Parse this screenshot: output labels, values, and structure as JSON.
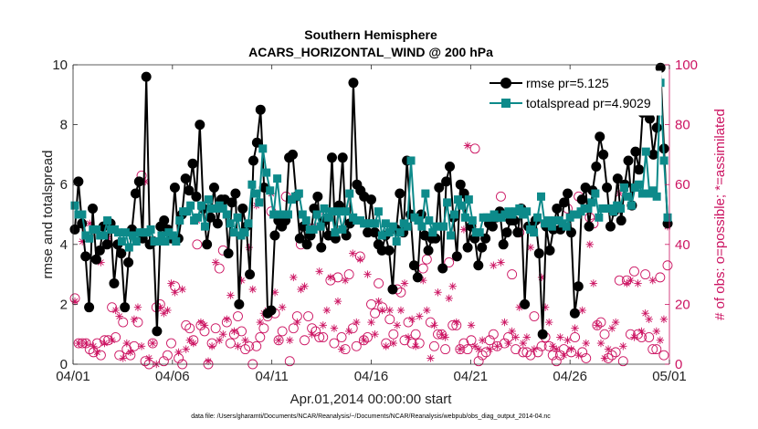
{
  "chart_data": {
    "type": "line",
    "title": "Southern Hemisphere",
    "subtitle": "ACARS_HORIZONTAL_WIND @ 200 hPa",
    "xlabel": "Apr.01,2014 00:00:00 start",
    "ylabel": "rmse and totalspread",
    "ylabel_right": "# of obs: o=possible; *=assimilated",
    "footnote": "data file: /Users/gharamti/Documents/NCAR/Reanalysis/~/Documents/NCAR/Reanalysis/webpub/obs_diag_output_2014-04.nc",
    "xlim": [
      0,
      30
    ],
    "ylim": [
      0,
      10
    ],
    "ylim_right": [
      0,
      100
    ],
    "x_ticks": [
      0,
      5,
      10,
      15,
      20,
      25,
      30
    ],
    "x_tick_labels": [
      "04/01",
      "04/06",
      "04/11",
      "04/16",
      "04/21",
      "04/26",
      "05/01"
    ],
    "y_ticks": [
      0,
      2,
      4,
      6,
      8,
      10
    ],
    "y_tick_labels": [
      "0",
      "2",
      "4",
      "6",
      "8",
      "10"
    ],
    "y_ticks_right": [
      0,
      20,
      40,
      60,
      80,
      100
    ],
    "y_tick_labels_right": [
      "0",
      "20",
      "40",
      "60",
      "80",
      "100"
    ],
    "legend_position": "top-right",
    "colors": {
      "rmse": "#000000",
      "spread": "#0d8a8a",
      "obs": "#cc1462"
    },
    "series": [
      {
        "name": "rmse pr=5.125",
        "marker": "circle",
        "values": [
          4.5,
          6.1,
          4.7,
          3.6,
          1.9,
          5.2,
          3.5,
          3.8,
          4.6,
          4.0,
          4.7,
          2.7,
          4.0,
          3.7,
          1.9,
          3.4,
          4.5,
          5.7,
          6.1,
          4.2,
          9.6,
          4.0,
          4.1,
          1.1,
          4.6,
          4.8,
          4.5,
          4.2,
          5.9,
          4.2,
          5.0,
          6.2,
          5.8,
          6.7,
          5.6,
          8.0,
          5.2,
          4.0,
          4.9,
          5.9,
          4.7,
          5.5,
          5.5,
          3.7,
          5.4,
          5.7,
          2.0,
          5.2,
          4.6,
          3.0,
          6.8,
          7.4,
          8.5,
          5.9,
          1.7,
          1.8,
          4.3,
          4.8,
          4.6,
          4.8,
          6.9,
          7.0,
          5.6,
          4.2,
          4.6,
          4.0,
          4.3,
          5.2,
          5.6,
          3.9,
          4.8,
          4.3,
          6.9,
          4.2,
          5.3,
          6.9,
          4.3,
          4.7,
          9.4,
          6.0,
          5.8,
          5.6,
          4.4,
          5.5,
          4.4,
          4.0,
          3.8,
          4.3,
          3.8,
          2.5,
          4.5,
          5.7,
          4.4,
          6.8,
          5.0,
          3.3,
          2.9,
          5.0,
          4.3,
          3.8,
          4.2,
          4.2,
          5.9,
          3.2,
          6.1,
          6.6,
          4.9,
          3.6,
          6.0,
          5.7,
          3.9,
          4.6,
          4.2,
          3.3,
          3.9,
          4.2,
          4.7,
          4.6,
          4.9,
          5.1,
          4.0,
          4.4,
          4.8,
          4.8,
          4.4,
          5.2,
          2.0,
          4.6,
          4.6,
          4.8,
          3.7,
          1.0,
          4.6,
          3.8,
          4.5,
          5.2,
          4.5,
          5.4,
          5.7,
          4.4,
          1.7,
          2.6,
          5.5,
          5.9,
          4.6,
          5.8,
          6.6,
          7.6,
          7.0,
          5.9,
          4.6,
          5.1,
          6.2,
          4.8,
          6.0,
          6.8,
          5.3,
          7.1,
          6.5,
          8.4,
          8.7,
          8.2,
          7.0,
          7.9,
          9.9,
          7.2,
          4.7
        ]
      },
      {
        "name": "totalspread pr=4.9029",
        "marker": "square",
        "values": [
          5.3,
          5.0,
          5.0,
          4.3,
          4.2,
          4.5,
          4.5,
          4.3,
          4.3,
          4.8,
          4.5,
          4.5,
          4.4,
          4.1,
          4.4,
          3.9,
          4.3,
          4.1,
          4.4,
          4.4,
          4.4,
          4.5,
          4.1,
          4.1,
          4.3,
          4.1,
          4.4,
          4.3,
          4.1,
          4.8,
          5.1,
          5.1,
          5.3,
          4.8,
          4.9,
          5.3,
          4.6,
          5.5,
          5.2,
          5.2,
          5.3,
          5.2,
          5.0,
          4.7,
          4.4,
          4.9,
          4.3,
          4.4,
          4.7,
          6.0,
          5.7,
          5.4,
          7.2,
          6.4,
          5.8,
          5.0,
          6.2,
          5.0,
          5.0,
          5.0,
          5.5,
          5.6,
          5.7,
          5.0,
          4.8,
          4.5,
          4.5,
          5.0,
          4.6,
          5.2,
          4.9,
          5.1,
          4.4,
          5.1,
          4.5,
          5.1,
          5.7,
          4.9,
          4.8,
          4.8,
          4.7,
          4.7,
          4.7,
          4.7,
          5.1,
          4.3,
          4.7,
          4.4,
          4.6,
          4.1,
          4.4,
          4.7,
          4.6,
          6.8,
          4.9,
          4.8,
          4.6,
          5.7,
          4.8,
          4.4,
          4.6,
          4.6,
          4.6,
          5.4,
          4.3,
          5.0,
          5.5,
          5.3,
          4.9,
          5.5,
          4.8,
          4.4,
          4.4,
          4.9,
          4.9,
          4.9,
          5.0,
          4.9,
          4.9,
          5.0,
          5.1,
          5.0,
          5.1,
          5.2,
          5.0,
          5.1,
          4.5,
          4.4,
          4.9,
          5.6,
          4.7,
          4.8,
          4.6,
          4.8,
          4.8,
          4.7,
          4.6,
          4.9,
          5.0,
          5.0,
          5.1,
          5.2,
          5.2,
          5.4,
          5.7,
          4.9,
          5.2,
          5.2,
          5.2,
          5.1,
          5.3,
          5.2,
          5.9,
          5.6,
          5.3,
          5.9,
          6.0,
          5.7,
          7.1,
          5.7,
          5.8,
          5.6,
          9.4,
          6.8,
          4.9
        ]
      },
      {
        "name": "obs possible",
        "marker": "circle-open",
        "axis": "right",
        "values": [
          22,
          7,
          7,
          7,
          5,
          4,
          7,
          3,
          8,
          8,
          19,
          9,
          3,
          14,
          5,
          3,
          6,
          14,
          63,
          1,
          0,
          7,
          19,
          20,
          1,
          3,
          7,
          26,
          2,
          0,
          13,
          12,
          8,
          40,
          13,
          11,
          0,
          7,
          12,
          32,
          38,
          14,
          7,
          10,
          16,
          11,
          5,
          6,
          0,
          6,
          9,
          12,
          16,
          51,
          17,
          8,
          11,
          56,
          1,
          12,
          16,
          40,
          8,
          16,
          12,
          11,
          9,
          9,
          50,
          28,
          7,
          29,
          9,
          5,
          30,
          12,
          6,
          36,
          8,
          9,
          20,
          17,
          27,
          19,
          7,
          15,
          10,
          25,
          24,
          8,
          14,
          7,
          10,
          7,
          32,
          35,
          14,
          6,
          10,
          10,
          5,
          34,
          13,
          13,
          5,
          7,
          5,
          8,
          72,
          1,
          3,
          4,
          8,
          10,
          6,
          56,
          7,
          9,
          30,
          5,
          44,
          4,
          4,
          3,
          16,
          4,
          6,
          9,
          6,
          3,
          1,
          3,
          5,
          52,
          4,
          9,
          56,
          4,
          2,
          49,
          47,
          13,
          14,
          10,
          2,
          3,
          4,
          28,
          1,
          28,
          10,
          31,
          10,
          9,
          30,
          9,
          5,
          5,
          29,
          3,
          33
        ]
      },
      {
        "name": "obs assimilated",
        "marker": "asterisk",
        "axis": "right",
        "values": [
          21,
          7,
          41,
          7,
          47,
          6,
          4,
          34,
          7,
          42,
          8,
          18,
          16,
          2,
          7,
          4,
          15,
          19,
          6,
          61,
          2,
          7,
          0,
          19,
          17,
          18,
          27,
          24,
          4,
          25,
          5,
          8,
          7,
          48,
          14,
          13,
          1,
          6,
          34,
          8,
          10,
          15,
          23,
          11,
          6,
          28,
          8,
          39,
          25,
          53,
          14,
          17,
          18,
          57,
          24,
          8,
          19,
          48,
          8,
          29,
          14,
          25,
          26,
          46,
          10,
          46,
          31,
          13,
          18,
          29,
          12,
          21,
          5,
          28,
          11,
          37,
          14,
          35,
          8,
          30,
          14,
          10,
          21,
          18,
          6,
          18,
          7,
          13,
          18,
          27,
          9,
          15,
          6,
          16,
          28,
          18,
          2,
          13,
          24,
          10,
          9,
          22,
          26,
          14,
          5,
          45,
          73,
          13,
          6,
          5,
          8,
          42,
          5,
          33,
          6,
          34,
          14,
          7,
          11,
          9,
          19,
          7,
          9,
          39,
          5,
          48,
          29,
          19,
          14,
          6,
          5,
          9,
          3,
          8,
          5,
          12,
          3,
          18,
          7,
          40,
          27,
          13,
          7,
          2,
          5,
          12,
          14,
          57,
          6,
          27,
          28,
          9,
          27,
          11,
          17,
          15,
          28,
          11,
          8,
          15,
          46
        ]
      }
    ]
  }
}
